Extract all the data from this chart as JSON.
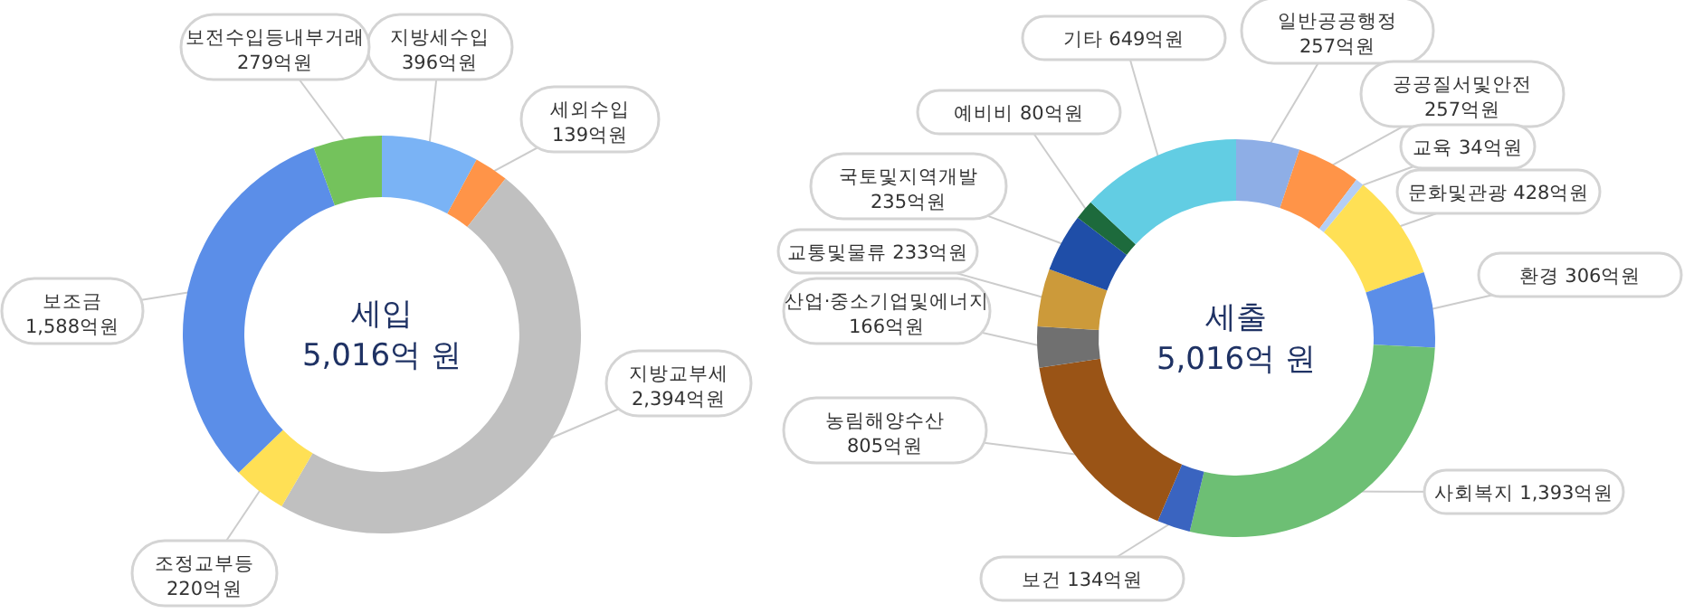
{
  "chart_data": [
    {
      "type": "donut",
      "title": "세입",
      "subtitle": "5,016억 원",
      "categories": [
        "지방세수입",
        "세외수입",
        "지방교부세",
        "조정교부등",
        "보조금",
        "보전수입등내부거래"
      ],
      "values": [
        396,
        139,
        2394,
        220,
        1588,
        279
      ],
      "colors": [
        "#7ab3f5",
        "#ff9448",
        "#c0c0c0",
        "#ffe055",
        "#5b8ee8",
        "#74c25c"
      ],
      "value_labels": [
        "396억원",
        "139억원",
        "2,394억원",
        "220억원",
        "1,588억원",
        "279억원"
      ]
    },
    {
      "type": "donut",
      "title": "세출",
      "subtitle": "5,016억 원",
      "categories": [
        "일반공공행정",
        "공공질서및안전",
        "교육",
        "문화및관광",
        "환경",
        "사회복지",
        "보건",
        "농림해양수산",
        "산업·중소기업및에너지",
        "교통및물류",
        "국토및지역개발",
        "예비비",
        "기타"
      ],
      "values": [
        257,
        257,
        34,
        428,
        306,
        1393,
        134,
        805,
        166,
        233,
        235,
        80,
        649
      ],
      "colors": [
        "#8eaee6",
        "#ff9448",
        "#b4cef5",
        "#ffe055",
        "#5b8ee8",
        "#6dbf74",
        "#3a64c0",
        "#9a5416",
        "#707070",
        "#cc9a3a",
        "#1f4ea8",
        "#1d6a3c",
        "#62cde3"
      ],
      "value_labels": [
        "257억원",
        "257억원",
        "34억원",
        "428억원",
        "306억원",
        "1,393억원",
        "134억원",
        "805억원",
        "166억원",
        "233억원",
        "235억원",
        "80억원",
        "649억원"
      ]
    }
  ]
}
